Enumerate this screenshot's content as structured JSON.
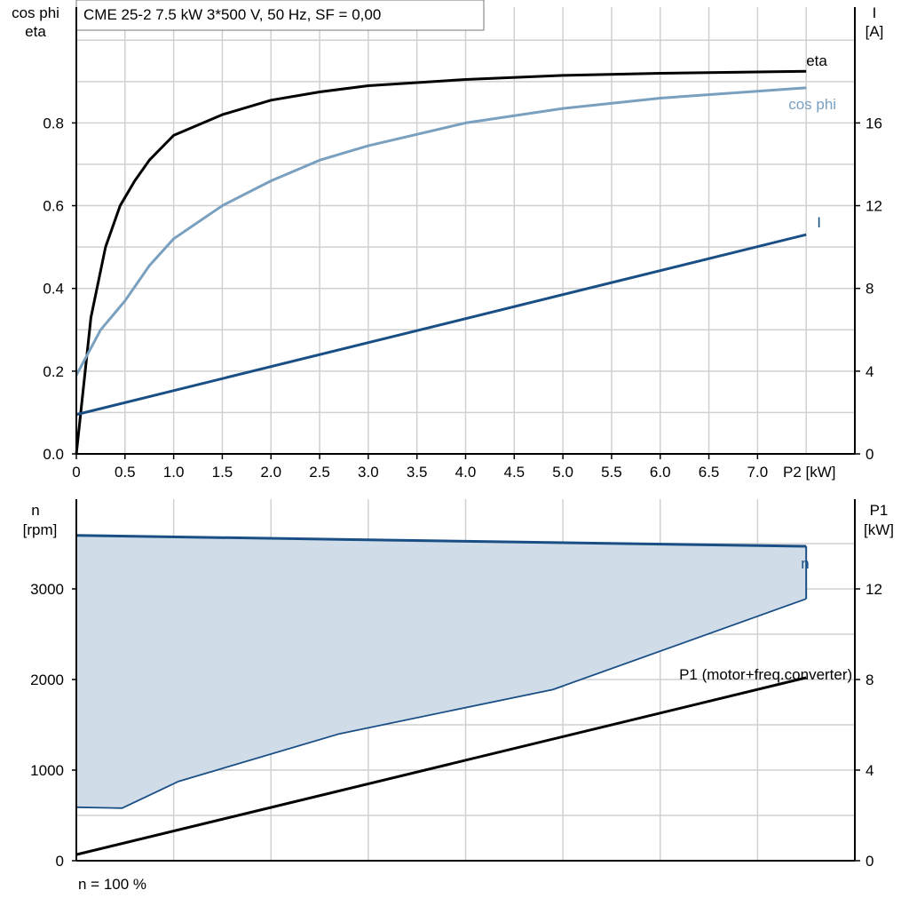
{
  "chart_data": [
    {
      "type": "line",
      "title": "CME 25-2   7.5 kW   3*500 V, 50 Hz, SF = 0,00",
      "xlabel": "P2 [kW]",
      "ylabel_left": [
        "cos phi",
        "eta"
      ],
      "ylabel_right": [
        "I",
        "[A]"
      ],
      "xlim": [
        0,
        8
      ],
      "ylim_left": [
        0,
        1.08
      ],
      "ylim_right": [
        0,
        21.6
      ],
      "xticks": [
        "0",
        "0.5",
        "1.0",
        "1.5",
        "2.0",
        "2.5",
        "3.0",
        "3.5",
        "4.0",
        "4.5",
        "5.0",
        "5.5",
        "6.0",
        "6.5",
        "7.0"
      ],
      "yticks_left": [
        "0.0",
        "0.2",
        "0.4",
        "0.6",
        "0.8"
      ],
      "yticks_right": [
        "0",
        "4",
        "8",
        "12",
        "16"
      ],
      "grid": true,
      "series": [
        {
          "name": "eta",
          "axis": "left",
          "color": "#000000",
          "x": [
            0,
            0.15,
            0.3,
            0.45,
            0.6,
            0.75,
            1.0,
            1.5,
            2.0,
            2.5,
            3.0,
            4.0,
            5.0,
            6.0,
            7.5
          ],
          "y": [
            0,
            0.33,
            0.5,
            0.6,
            0.66,
            0.71,
            0.77,
            0.82,
            0.855,
            0.875,
            0.89,
            0.905,
            0.915,
            0.92,
            0.925
          ]
        },
        {
          "name": "cos phi",
          "axis": "left",
          "color": "#7aa0c0",
          "x": [
            0,
            0.25,
            0.5,
            0.75,
            1.0,
            1.5,
            2.0,
            2.5,
            3.0,
            4.0,
            5.0,
            6.0,
            7.5
          ],
          "y": [
            0.19,
            0.3,
            0.37,
            0.455,
            0.52,
            0.6,
            0.66,
            0.71,
            0.745,
            0.8,
            0.835,
            0.86,
            0.885
          ]
        },
        {
          "name": "I",
          "axis": "right",
          "color": "#1a4f85",
          "x": [
            0,
            7.5
          ],
          "y": [
            1.9,
            10.6
          ]
        }
      ]
    },
    {
      "type": "area",
      "xlabel": "",
      "ylabel_left": [
        "n",
        "[rpm]"
      ],
      "ylabel_right": [
        "P1",
        "[kW]"
      ],
      "xlim": [
        0,
        8
      ],
      "ylim_left": [
        0,
        3990
      ],
      "ylim_right": [
        0,
        15.96
      ],
      "yticks_left": [
        "0",
        "1000",
        "2000",
        "3000"
      ],
      "yticks_right": [
        "0",
        "4",
        "8",
        "12"
      ],
      "grid": true,
      "footnote": "n = 100 %",
      "series": [
        {
          "name": "n",
          "axis": "left",
          "color": "#1a4f85",
          "fill": "#d0dce8",
          "upper": {
            "x": [
              0,
              7.5
            ],
            "y": [
              3590,
              3470
            ]
          },
          "lower": {
            "x": [
              0,
              0.47,
              1.05,
              2.7,
              4.9,
              7.5
            ],
            "y": [
              590,
              580,
              875,
              1400,
              1890,
              2890
            ]
          }
        },
        {
          "name": "P1 (motor+freq.converter)",
          "axis": "right",
          "color": "#000000",
          "x": [
            0,
            7.5
          ],
          "y": [
            0.27,
            8.08
          ]
        }
      ]
    }
  ]
}
